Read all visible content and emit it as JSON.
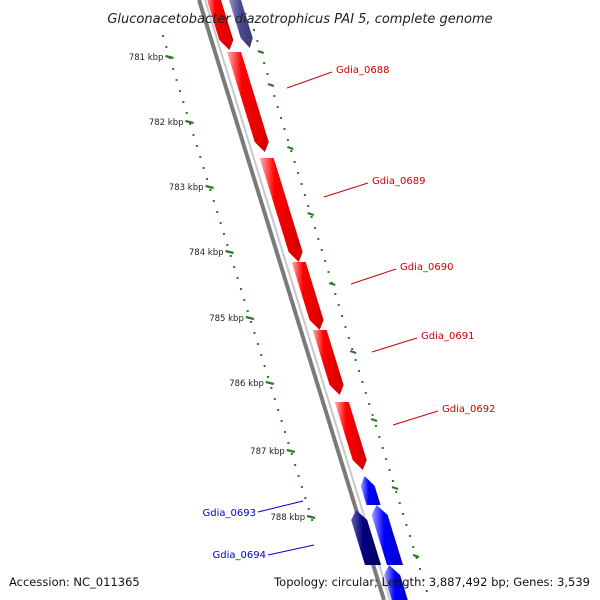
{
  "title": "Gluconacetobacter diazotrophicus PAI 5, complete genome",
  "footer": {
    "accession": "Accession: NC_011365",
    "summary": "Topology: circular; Length: 3,887,492 bp; Genes: 3,539"
  },
  "colors": {
    "forward_gene": "#ff0000",
    "reverse_gene_dark": "#000080",
    "reverse_gene_blue": "#0000ff",
    "reverse_gene_light": "#4a4a90",
    "backbone": "#888888",
    "tick": "#2a7a2a",
    "label_red": "#cc0000",
    "label_blue": "#0000cc"
  },
  "ticks": [
    {
      "label": "781 kbp"
    },
    {
      "label": "782 kbp"
    },
    {
      "label": "783 kbp"
    },
    {
      "label": "784 kbp"
    },
    {
      "label": "785 kbp"
    },
    {
      "label": "786 kbp"
    },
    {
      "label": "787 kbp"
    },
    {
      "label": "788 kbp"
    }
  ],
  "gene_labels": [
    {
      "name": "Gdia_0688",
      "strand": "forward"
    },
    {
      "name": "Gdia_0689",
      "strand": "forward"
    },
    {
      "name": "Gdia_0690",
      "strand": "forward"
    },
    {
      "name": "Gdia_0691",
      "strand": "forward"
    },
    {
      "name": "Gdia_0692",
      "strand": "forward"
    },
    {
      "name": "Gdia_0693",
      "strand": "reverse"
    },
    {
      "name": "Gdia_0694",
      "strand": "reverse"
    }
  ]
}
